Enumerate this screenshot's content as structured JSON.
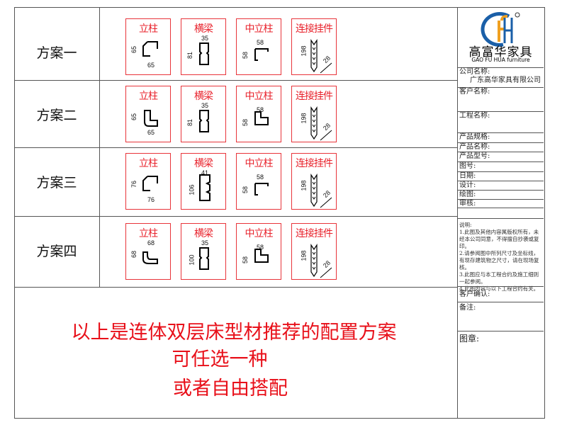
{
  "schemes": [
    {
      "label": "方案一",
      "cards": [
        {
          "title": "立柱",
          "type": "post",
          "w": "65",
          "h": "65"
        },
        {
          "title": "横梁",
          "type": "beam",
          "w": "35",
          "h": "81"
        },
        {
          "title": "中立柱",
          "type": "mid",
          "w": "58",
          "h": "58"
        },
        {
          "title": "连接挂件",
          "type": "hanger",
          "h": "198",
          "w": "28"
        }
      ]
    },
    {
      "label": "方案二",
      "cards": [
        {
          "title": "立柱",
          "type": "post2",
          "w": "65",
          "h": "65"
        },
        {
          "title": "横梁",
          "type": "beam",
          "w": "35",
          "h": "81"
        },
        {
          "title": "中立柱",
          "type": "mid2",
          "w": "58",
          "h": "58"
        },
        {
          "title": "连接挂件",
          "type": "hanger",
          "h": "198",
          "w": "28"
        }
      ]
    },
    {
      "label": "方案三",
      "cards": [
        {
          "title": "立柱",
          "type": "post",
          "w": "76",
          "h": "76"
        },
        {
          "title": "横梁",
          "type": "beam3",
          "w": "41",
          "h": "106"
        },
        {
          "title": "中立柱",
          "type": "mid",
          "w": "58",
          "h": "58"
        },
        {
          "title": "连接挂件",
          "type": "hanger",
          "h": "198",
          "w": "28"
        }
      ]
    },
    {
      "label": "方案四",
      "cards": [
        {
          "title": "立柱",
          "type": "post4",
          "w": "68",
          "h": "68"
        },
        {
          "title": "横梁",
          "type": "beam",
          "w": "35",
          "h": "100"
        },
        {
          "title": "中立柱",
          "type": "mid2",
          "w": "58",
          "h": "58"
        },
        {
          "title": "连接挂件",
          "type": "hanger",
          "h": "198",
          "w": "28"
        }
      ]
    }
  ],
  "summary": {
    "line1": "以上是连体双层床型材推荐的配置方案",
    "line2": "可任选一种",
    "line3": "或者自由搭配"
  },
  "titleblock": {
    "brand_cn": "高富华家具",
    "brand_en": "GAO FU HUA furniture",
    "registered": "®",
    "company_label": "公司名称:",
    "company_value": "广东高华家具有限公司",
    "client_label": "客户名称:",
    "project_label": "工程名称:",
    "spec_label": "产品规格:",
    "name_label": "产品名称:",
    "model_label": "产品型号:",
    "drawing_no_label": "图号:",
    "date_label": "日期:",
    "design_label": "设计:",
    "draw_label": "绘图:",
    "review_label": "审核:",
    "notes_title": "说明:",
    "notes": [
      "1.此图及其他内容属版权所有，未经本公司同意，不得擅自抄袭或复印。",
      "2.请参阅图中所列尺寸及坐标线，有现存建筑物之尺寸，请在现场复核。",
      "3.此图应与本工程合约及施工细则一起参阅。",
      "4.此图内容与以下工程合约有关。"
    ],
    "confirm_label": "客户确认:",
    "remark_label": "备注:",
    "stamp_label": "图章:"
  },
  "colors": {
    "accent_red": "#e8202a",
    "logo_blue": "#1a5fa8",
    "logo_orange": "#f0a020"
  }
}
